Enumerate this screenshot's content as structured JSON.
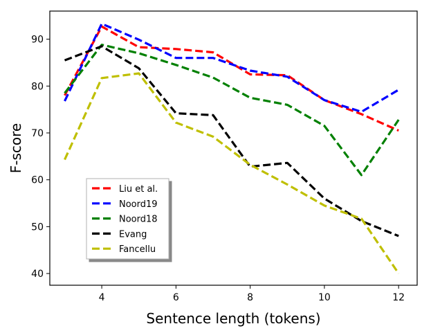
{
  "chart_data": {
    "type": "line",
    "xlabel": "Sentence length (tokens)",
    "ylabel": "F-score",
    "xlim": [
      2.6,
      12.5
    ],
    "ylim": [
      37.5,
      96
    ],
    "xticks": [
      4,
      6,
      8,
      10,
      12
    ],
    "yticks": [
      40,
      50,
      60,
      70,
      80,
      90
    ],
    "grid": false,
    "legend": "lower-left",
    "x": [
      3,
      4,
      5,
      6,
      7,
      8,
      9,
      10,
      11,
      12
    ],
    "series": [
      {
        "name": "Liu et al.",
        "color": "#ff0000",
        "values": [
          78.0,
          92.7,
          88.3,
          87.9,
          87.2,
          82.5,
          82.3,
          77.0,
          74.0,
          70.5
        ]
      },
      {
        "name": "Noord19",
        "color": "#0000ff",
        "values": [
          76.8,
          93.3,
          89.9,
          86.0,
          86.0,
          83.3,
          82.0,
          77.0,
          74.5,
          79.2
        ]
      },
      {
        "name": "Noord18",
        "color": "#008000",
        "values": [
          78.5,
          88.8,
          87.0,
          84.5,
          81.8,
          77.5,
          76.0,
          71.5,
          61.0,
          72.8
        ]
      },
      {
        "name": "Evang",
        "color": "#000000",
        "values": [
          85.5,
          88.5,
          83.8,
          74.2,
          73.8,
          62.8,
          63.6,
          56.0,
          51.2,
          48.0
        ]
      },
      {
        "name": "Fancellu",
        "color": "#bfbf00",
        "values": [
          64.3,
          81.7,
          82.7,
          72.2,
          69.2,
          63.2,
          59.0,
          54.5,
          51.7,
          40.0
        ]
      }
    ]
  }
}
